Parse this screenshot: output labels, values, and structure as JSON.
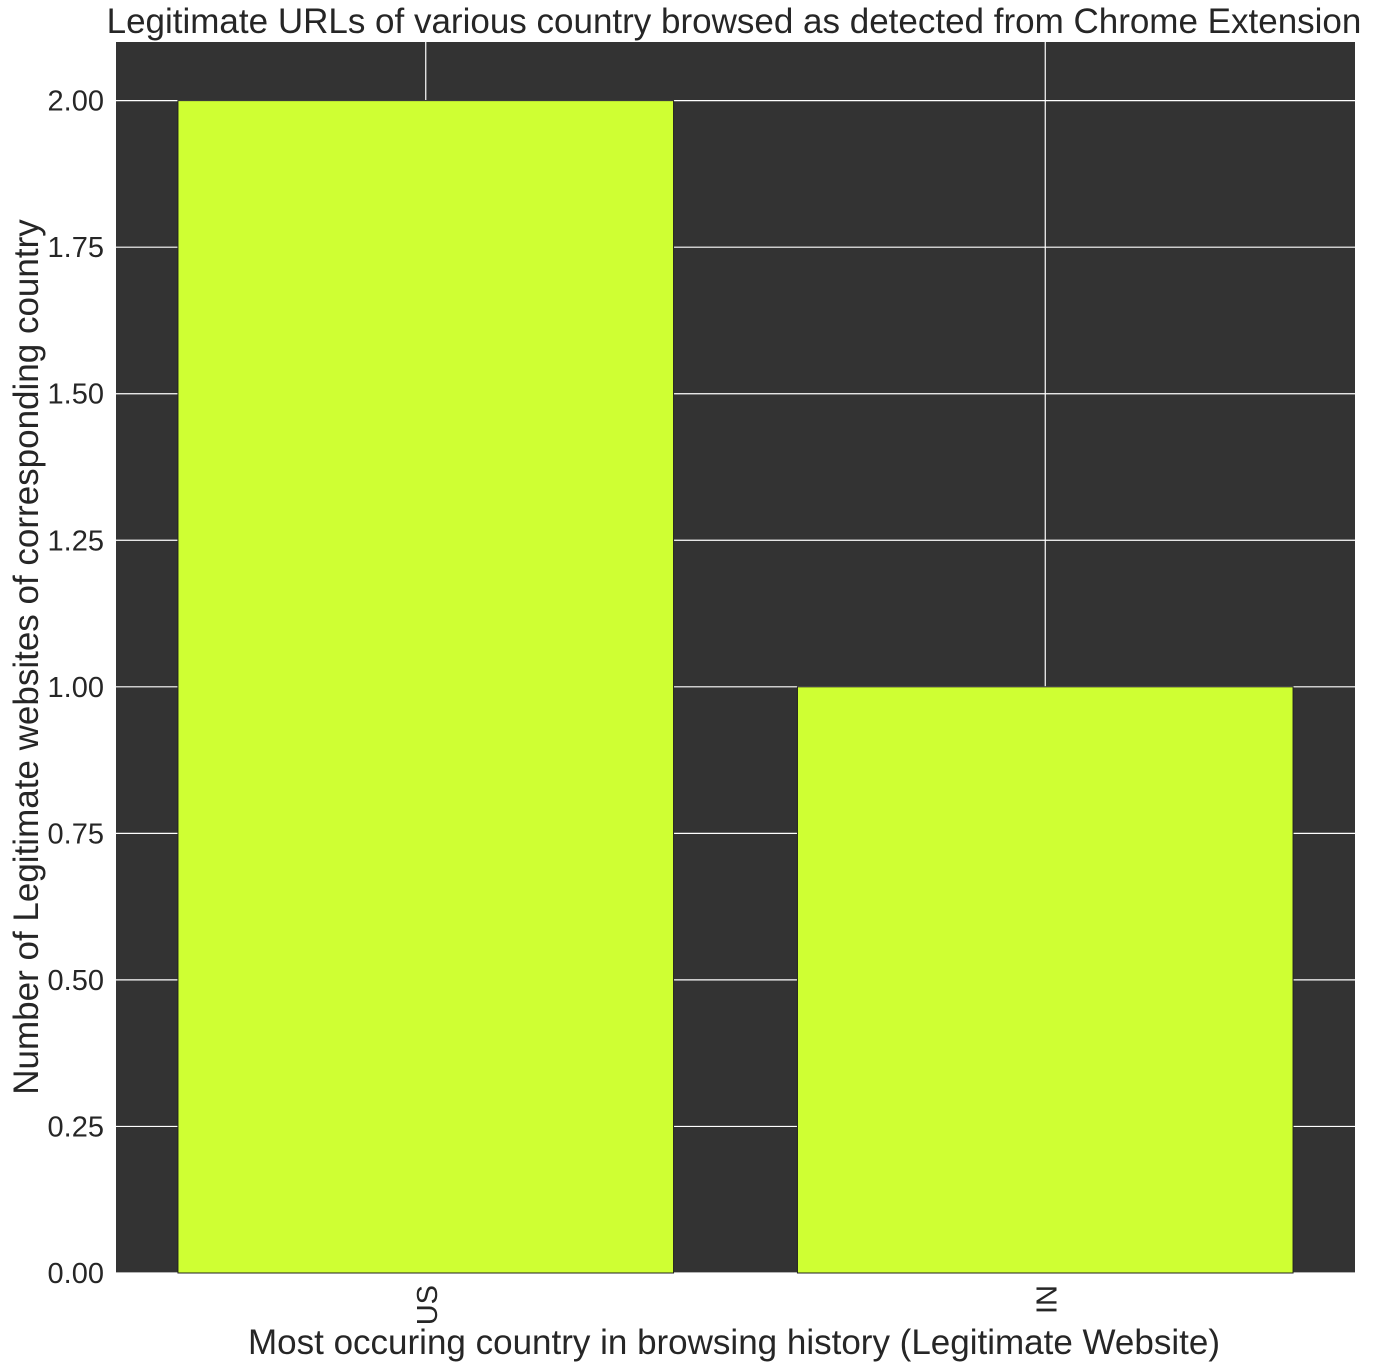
{
  "chart_data": {
    "type": "bar",
    "title": "Legitimate URLs of various country browsed as detected from Chrome Extension",
    "xlabel": "Most occuring country in browsing history (Legitimate Website)",
    "ylabel": "Number of Legitimate websites of corresponding country",
    "categories": [
      "US",
      "IN"
    ],
    "values": [
      2,
      1
    ],
    "ylim": [
      0,
      2.1
    ],
    "yticks": [
      "0.00",
      "0.25",
      "0.50",
      "0.75",
      "1.00",
      "1.25",
      "1.50",
      "1.75",
      "2.00"
    ],
    "grid": true,
    "colors": {
      "bar": "#cfff33",
      "plot_background": "#333333",
      "grid": "#ffffff",
      "text": "#262626"
    }
  }
}
